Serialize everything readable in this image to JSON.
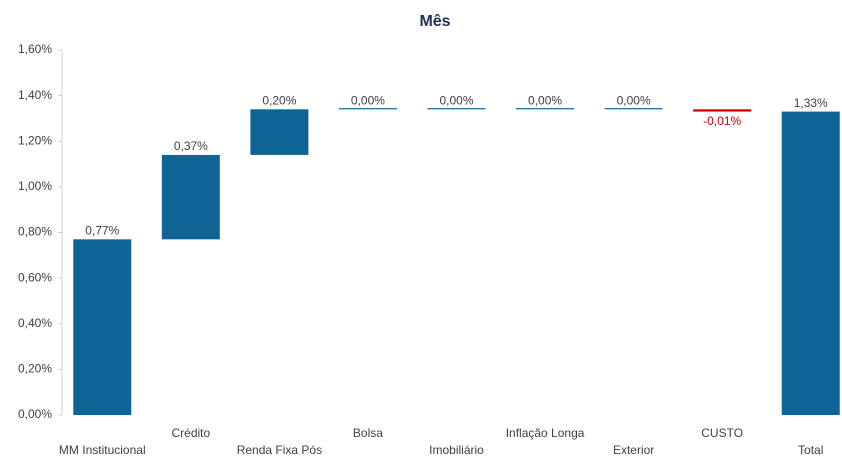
{
  "chart_data": {
    "type": "waterfall",
    "title": "Mês",
    "categories": [
      "MM Institucional",
      "Crédito",
      "Renda Fixa Pós",
      "Bolsa",
      "Imobiliário",
      "Inflação Longa",
      "Exterior",
      "CUSTO",
      "Total"
    ],
    "values": [
      0.77,
      0.37,
      0.2,
      0.0,
      0.0,
      0.0,
      0.0,
      -0.01,
      1.33
    ],
    "value_labels": [
      "0,77%",
      "0,37%",
      "0,20%",
      "0,00%",
      "0,00%",
      "0,00%",
      "0,00%",
      "-0,01%",
      "1,33%"
    ],
    "color": "#0f6496",
    "negative_color": "#d00000",
    "ylim": [
      0,
      1.6
    ],
    "yticks": [
      {
        "value": 0,
        "label": "0,00%"
      },
      {
        "value": 0.2,
        "label": "0,20%"
      },
      {
        "value": 0.4,
        "label": "0,40%"
      },
      {
        "value": 0.6,
        "label": "0,60%"
      },
      {
        "value": 0.8,
        "label": "0,80%"
      },
      {
        "value": 1.0,
        "label": "1,00%"
      },
      {
        "value": 1.2,
        "label": "1,20%"
      },
      {
        "value": 1.4,
        "label": "1,40%"
      },
      {
        "value": 1.6,
        "label": "1,60%"
      }
    ],
    "grid": false
  }
}
